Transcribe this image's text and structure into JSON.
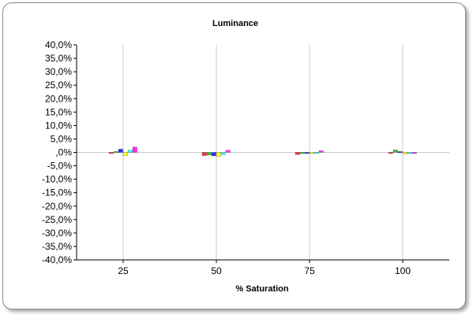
{
  "chart_data": {
    "type": "bar",
    "title": "Luminance",
    "xlabel": "% Saturation",
    "ylabel": "",
    "ylim": [
      -40,
      40
    ],
    "yticks": [
      40,
      35,
      30,
      25,
      20,
      15,
      10,
      5,
      0,
      -5,
      -10,
      -15,
      -20,
      -25,
      -30,
      -35,
      -40
    ],
    "ytick_labels": [
      "40,0%",
      "35,0%",
      "30,0%",
      "25,0%",
      "20,0%",
      "15,0%",
      "10,0%",
      "5,0%",
      ",0%",
      "-5,0%",
      "-10,0%",
      "-15,0%",
      "-20,0%",
      "-25,0%",
      "-30,0%",
      "-35,0%",
      "-40,0%"
    ],
    "categories": [
      "25",
      "50",
      "75",
      "100"
    ],
    "grid": true,
    "legend": "none",
    "series": [
      {
        "color": "#ff3030",
        "values": [
          -0.4,
          -1.2,
          -0.8,
          -0.3
        ]
      },
      {
        "color": "#30c030",
        "values": [
          0.3,
          -1.0,
          -0.4,
          0.9
        ]
      },
      {
        "color": "#3030ff",
        "values": [
          1.2,
          -1.3,
          -0.3,
          0.3
        ]
      },
      {
        "color": "#ffff30",
        "values": [
          -1.2,
          -1.5,
          -0.3,
          -0.6
        ]
      },
      {
        "color": "#30ffff",
        "values": [
          0.8,
          -0.8,
          -0.4,
          -0.3
        ]
      },
      {
        "color": "#ff30ff",
        "values": [
          2.0,
          0.8,
          0.6,
          -0.3
        ]
      }
    ]
  }
}
